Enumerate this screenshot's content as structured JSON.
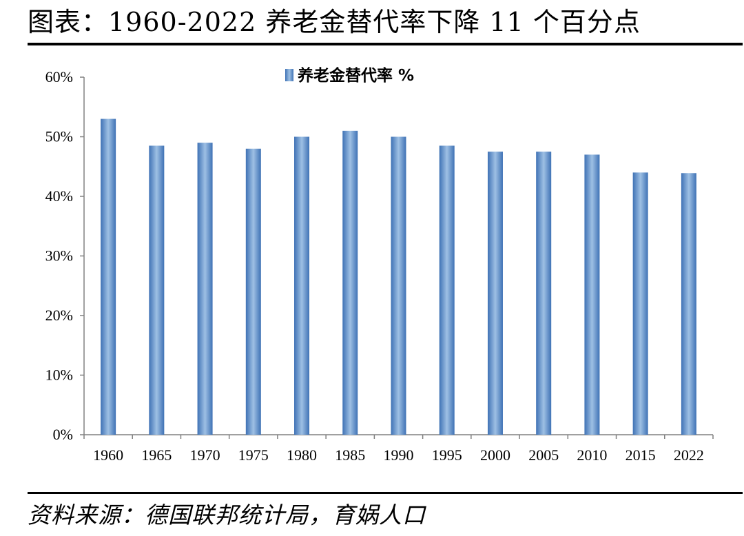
{
  "page": {
    "title": "图表：1960-2022 养老金替代率下降 11 个百分点",
    "source": "资料来源：德国联邦统计局，育娲人口"
  },
  "colors": {
    "bar_dark": "#3f72b5",
    "bar_light": "#9ec0e4",
    "axis": "#808080"
  },
  "chart_data": {
    "type": "bar",
    "categories": [
      "1960",
      "1965",
      "1970",
      "1975",
      "1980",
      "1985",
      "1990",
      "1995",
      "2000",
      "2005",
      "2010",
      "2015",
      "2022"
    ],
    "series": [
      {
        "name": "养老金替代率 %",
        "values": [
          53,
          48.5,
          49,
          48,
          50,
          51,
          50,
          48.5,
          47.5,
          47.5,
          47,
          44,
          43.9
        ]
      }
    ],
    "ylim": [
      0,
      60
    ],
    "yticks": [
      0,
      10,
      20,
      30,
      40,
      50,
      60
    ],
    "ytick_labels": [
      "0%",
      "10%",
      "20%",
      "30%",
      "40%",
      "50%",
      "60%"
    ],
    "legend_position": "top-center",
    "grid": false
  }
}
